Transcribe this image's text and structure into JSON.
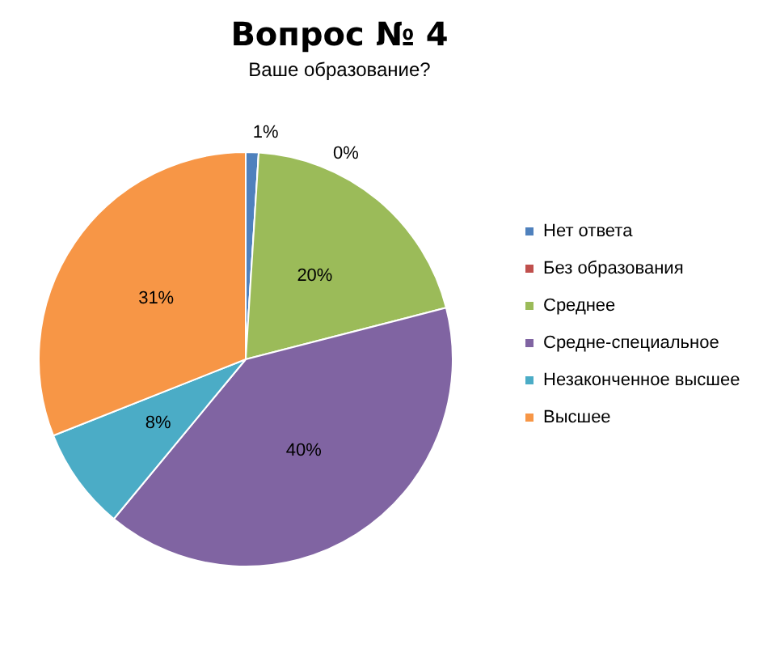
{
  "chart_data": {
    "type": "pie",
    "title": "Вопрос № 4",
    "subtitle": "Ваше образование?",
    "categories": [
      "Нет ответа",
      "Без образования",
      "Среднее",
      "Средне-специальное",
      "Незаконченное высшее",
      "Высшее"
    ],
    "values": [
      1,
      0,
      20,
      40,
      8,
      31
    ],
    "colors": [
      "#4f81bd",
      "#c0504d",
      "#9bbb59",
      "#8064a2",
      "#4bacc6",
      "#f79646"
    ],
    "value_labels": [
      "1%",
      "0%",
      "20%",
      "40%",
      "8%",
      "31%"
    ],
    "legend": "right"
  }
}
